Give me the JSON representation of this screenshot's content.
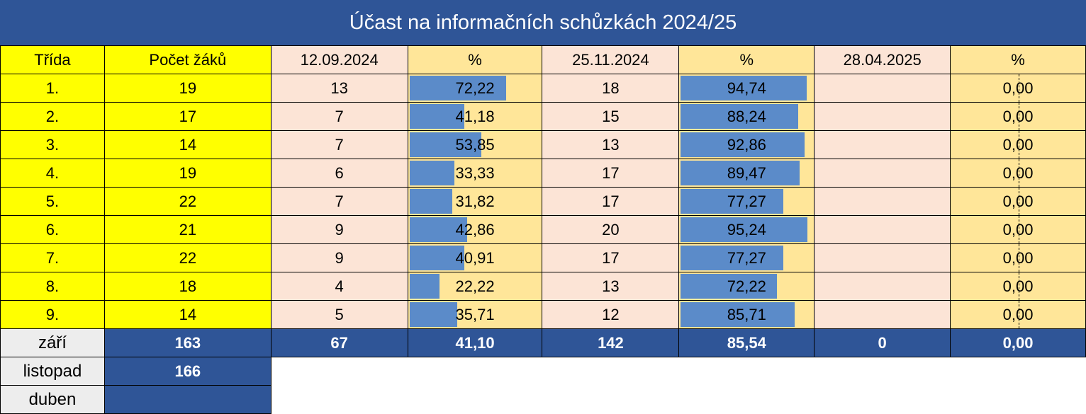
{
  "title": "Účast na informačních schůzkách 2024/25",
  "headers": {
    "trida": "Třída",
    "pocet": "Počet žáků",
    "date1": "12.09.2024",
    "pct1": "%",
    "date2": "25.11.2024",
    "pct2": "%",
    "date3": "28.04.2025",
    "pct3": "%"
  },
  "rows": [
    {
      "trida": "1.",
      "pocet": "19",
      "c1": "13",
      "p1": "72,22",
      "p1v": 72.22,
      "c2": "18",
      "p2": "94,74",
      "p2v": 94.74,
      "c3": "",
      "p3": "0,00"
    },
    {
      "trida": "2.",
      "pocet": "17",
      "c1": "7",
      "p1": "41,18",
      "p1v": 41.18,
      "c2": "15",
      "p2": "88,24",
      "p2v": 88.24,
      "c3": "",
      "p3": "0,00"
    },
    {
      "trida": "3.",
      "pocet": "14",
      "c1": "7",
      "p1": "53,85",
      "p1v": 53.85,
      "c2": "13",
      "p2": "92,86",
      "p2v": 92.86,
      "c3": "",
      "p3": "0,00"
    },
    {
      "trida": "4.",
      "pocet": "19",
      "c1": "6",
      "p1": "33,33",
      "p1v": 33.33,
      "c2": "17",
      "p2": "89,47",
      "p2v": 89.47,
      "c3": "",
      "p3": "0,00"
    },
    {
      "trida": "5.",
      "pocet": "22",
      "c1": "7",
      "p1": "31,82",
      "p1v": 31.82,
      "c2": "17",
      "p2": "77,27",
      "p2v": 77.27,
      "c3": "",
      "p3": "0,00"
    },
    {
      "trida": "6.",
      "pocet": "21",
      "c1": "9",
      "p1": "42,86",
      "p1v": 42.86,
      "c2": "20",
      "p2": "95,24",
      "p2v": 95.24,
      "c3": "",
      "p3": "0,00"
    },
    {
      "trida": "7.",
      "pocet": "22",
      "c1": "9",
      "p1": "40,91",
      "p1v": 40.91,
      "c2": "17",
      "p2": "77,27",
      "p2v": 77.27,
      "c3": "",
      "p3": "0,00"
    },
    {
      "trida": "8.",
      "pocet": "18",
      "c1": "4",
      "p1": "22,22",
      "p1v": 22.22,
      "c2": "13",
      "p2": "72,22",
      "p2v": 72.22,
      "c3": "",
      "p3": "0,00"
    },
    {
      "trida": "9.",
      "pocet": "14",
      "c1": "5",
      "p1": "35,71",
      "p1v": 35.71,
      "c2": "12",
      "p2": "85,71",
      "p2v": 85.71,
      "c3": "",
      "p3": "0,00"
    }
  ],
  "footer": [
    {
      "label": "září",
      "pocet": "163",
      "c1": "67",
      "p1": "41,10",
      "c2": "142",
      "p2": "85,54",
      "c3": "0",
      "p3": "0,00"
    },
    {
      "label": "listopad",
      "pocet": "166"
    },
    {
      "label": "duben",
      "pocet": ""
    }
  ],
  "colors": {
    "navy": "#2f5597",
    "yellow": "#ffff00",
    "peach": "#fce4d6",
    "orange": "#ffe699",
    "bar": "#5b8bc9"
  }
}
